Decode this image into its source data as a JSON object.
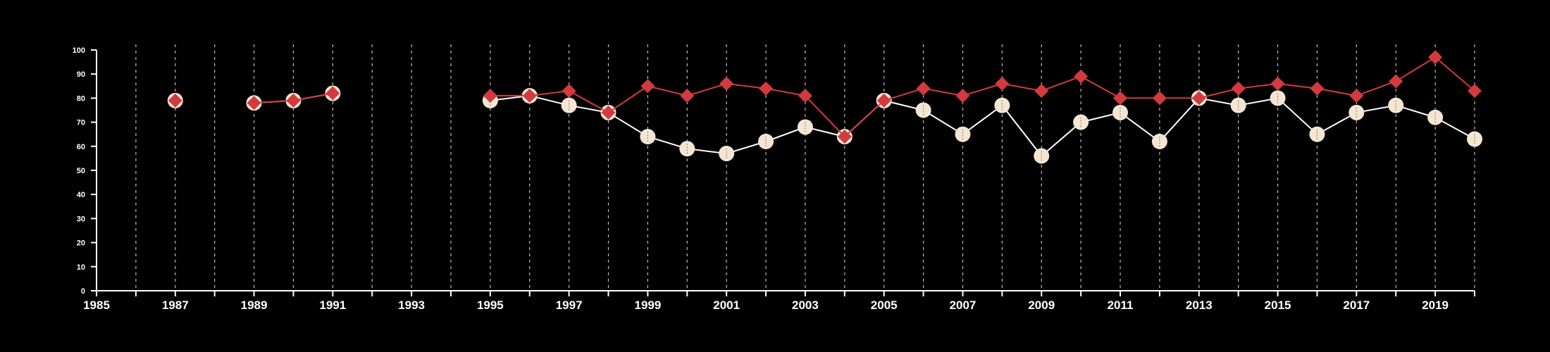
{
  "chart_data": {
    "type": "line",
    "title": "",
    "xlabel": "",
    "ylabel": "",
    "xlim": [
      1985,
      2020
    ],
    "ylim": [
      0,
      100
    ],
    "x_ticks": [
      1985,
      1987,
      1989,
      1991,
      1993,
      1995,
      1997,
      1999,
      2001,
      2003,
      2005,
      2007,
      2009,
      2011,
      2013,
      2015,
      2017,
      2019
    ],
    "y_ticks": [
      0,
      10,
      20,
      30,
      40,
      50,
      60,
      70,
      80,
      90,
      100
    ],
    "x_tick_labels": [
      "1985",
      "1987",
      "1989",
      "1991",
      "1993",
      "1995",
      "1997",
      "1999",
      "2001",
      "2003",
      "2005",
      "2007",
      "2009",
      "2011",
      "2013",
      "2015",
      "2017",
      "2019"
    ],
    "y_tick_labels": [
      "0",
      "10",
      "20",
      "30",
      "40",
      "50",
      "60",
      "70",
      "80",
      "90",
      "100"
    ],
    "grid": "vertical dashed lines at every year",
    "legend": "none",
    "series": [
      {
        "marker": "circle",
        "color": "#f5e6d3",
        "line_color": "#ffffff",
        "points": [
          [
            1987,
            79
          ],
          [
            1989,
            78
          ],
          [
            1990,
            79
          ],
          [
            1991,
            82
          ],
          [
            1995,
            79
          ],
          [
            1996,
            81
          ],
          [
            1997,
            77
          ],
          [
            1998,
            74
          ],
          [
            1999,
            64
          ],
          [
            2000,
            59
          ],
          [
            2001,
            57
          ],
          [
            2002,
            62
          ],
          [
            2003,
            68
          ],
          [
            2004,
            64
          ],
          [
            2005,
            79
          ],
          [
            2006,
            75
          ],
          [
            2007,
            65
          ],
          [
            2008,
            77
          ],
          [
            2009,
            56
          ],
          [
            2010,
            70
          ],
          [
            2011,
            74
          ],
          [
            2012,
            62
          ],
          [
            2013,
            80
          ],
          [
            2014,
            77
          ],
          [
            2015,
            80
          ],
          [
            2016,
            65
          ],
          [
            2017,
            74
          ],
          [
            2018,
            77
          ],
          [
            2019,
            72
          ],
          [
            2020,
            63
          ]
        ]
      },
      {
        "marker": "diamond",
        "color": "#d33a3f",
        "line_color": "#d33a3f",
        "points": [
          [
            1987,
            79
          ],
          [
            1989,
            78
          ],
          [
            1990,
            79
          ],
          [
            1991,
            82
          ],
          [
            1995,
            81
          ],
          [
            1996,
            81
          ],
          [
            1997,
            83
          ],
          [
            1998,
            74
          ],
          [
            1999,
            85
          ],
          [
            2000,
            81
          ],
          [
            2001,
            86
          ],
          [
            2002,
            84
          ],
          [
            2003,
            81
          ],
          [
            2004,
            64
          ],
          [
            2005,
            79
          ],
          [
            2006,
            84
          ],
          [
            2007,
            81
          ],
          [
            2008,
            86
          ],
          [
            2009,
            83
          ],
          [
            2010,
            89
          ],
          [
            2011,
            80
          ],
          [
            2012,
            80
          ],
          [
            2013,
            80
          ],
          [
            2014,
            84
          ],
          [
            2015,
            86
          ],
          [
            2016,
            84
          ],
          [
            2017,
            81
          ],
          [
            2018,
            87
          ],
          [
            2019,
            97
          ],
          [
            2020,
            83
          ]
        ]
      }
    ]
  }
}
